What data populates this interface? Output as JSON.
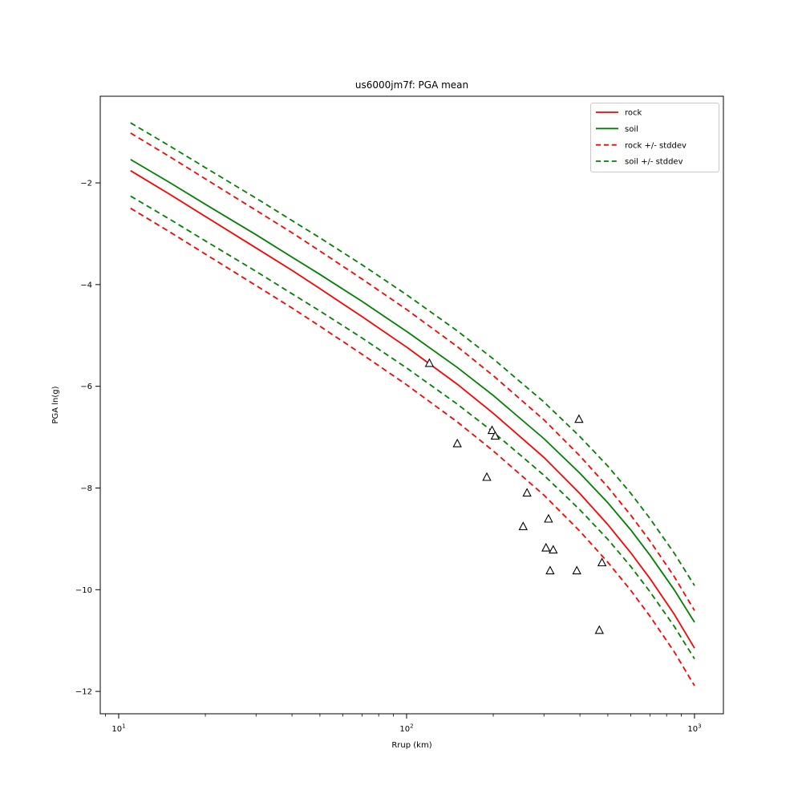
{
  "chart_data": {
    "type": "line",
    "title": "us6000jm7f: PGA mean",
    "xlabel": "Rrup (km)",
    "ylabel": "PGA ln(g)",
    "x_scale": "log",
    "y_scale": "linear",
    "xlim": [
      8.63,
      1260
    ],
    "ylim": [
      -12.44,
      -0.296
    ],
    "x_major_ticks": [
      10,
      100,
      1000
    ],
    "x_major_tick_exponents": [
      1,
      2,
      3
    ],
    "y_ticks": [
      -2,
      -4,
      -6,
      -8,
      -10,
      -12
    ],
    "grid": false,
    "legend_position": "upper right",
    "x": [
      11,
      15,
      20,
      30,
      40,
      50,
      70,
      100,
      150,
      200,
      300,
      400,
      500,
      600,
      700,
      850,
      1000
    ],
    "series": [
      {
        "name": "rock",
        "color": "#ff0000",
        "dash": "solid",
        "values": [
          -1.76,
          -2.22,
          -2.66,
          -3.28,
          -3.72,
          -4.08,
          -4.63,
          -5.23,
          -5.96,
          -6.53,
          -7.4,
          -8.11,
          -8.72,
          -9.27,
          -9.78,
          -10.48,
          -11.15
        ]
      },
      {
        "name": "soil",
        "color": "#008000",
        "dash": "solid",
        "values": [
          -1.54,
          -1.99,
          -2.42,
          -3.02,
          -3.46,
          -3.8,
          -4.33,
          -4.92,
          -5.63,
          -6.18,
          -7.03,
          -7.71,
          -8.29,
          -8.82,
          -9.32,
          -10.0,
          -10.64
        ]
      },
      {
        "name": "rock-plus-stddev",
        "color": "#ff0000",
        "dash": "dashed",
        "values": [
          -1.02,
          -1.48,
          -1.92,
          -2.54,
          -2.98,
          -3.34,
          -3.89,
          -4.49,
          -5.22,
          -5.79,
          -6.66,
          -7.37,
          -7.98,
          -8.53,
          -9.04,
          -9.74,
          -10.41
        ]
      },
      {
        "name": "rock-minus-stddev",
        "color": "#ff0000",
        "dash": "dashed",
        "values": [
          -2.5,
          -2.96,
          -3.4,
          -4.02,
          -4.46,
          -4.82,
          -5.37,
          -5.97,
          -6.7,
          -7.27,
          -8.14,
          -8.85,
          -9.46,
          -10.01,
          -10.52,
          -11.22,
          -11.89
        ]
      },
      {
        "name": "soil-plus-stddev",
        "color": "#008000",
        "dash": "dashed",
        "values": [
          -0.82,
          -1.27,
          -1.7,
          -2.3,
          -2.74,
          -3.08,
          -3.61,
          -4.2,
          -4.91,
          -5.46,
          -6.31,
          -6.99,
          -7.57,
          -8.1,
          -8.6,
          -9.28,
          -9.92
        ]
      },
      {
        "name": "soil-minus-stddev",
        "color": "#008000",
        "dash": "dashed",
        "values": [
          -2.26,
          -2.71,
          -3.14,
          -3.74,
          -4.18,
          -4.52,
          -5.05,
          -5.64,
          -6.35,
          -6.9,
          -7.75,
          -8.43,
          -9.01,
          -9.54,
          -10.04,
          -10.72,
          -11.36
        ]
      }
    ],
    "scatter": {
      "name": "station-observations",
      "marker": "triangle-up-open",
      "edge_color": "#000000",
      "points": [
        [
          120,
          -5.55
        ],
        [
          150,
          -7.13
        ],
        [
          190,
          -7.79
        ],
        [
          198,
          -6.87
        ],
        [
          203,
          -6.98
        ],
        [
          254,
          -8.76
        ],
        [
          262,
          -8.1
        ],
        [
          305,
          -9.18
        ],
        [
          311,
          -8.61
        ],
        [
          315,
          -9.63
        ],
        [
          323,
          -9.22
        ],
        [
          390,
          -9.63
        ],
        [
          397,
          -6.65
        ],
        [
          467,
          -10.8
        ],
        [
          477,
          -9.47
        ]
      ]
    },
    "legend": {
      "entries": [
        {
          "label": "rock",
          "color": "#ff0000",
          "dash": "solid"
        },
        {
          "label": "soil",
          "color": "#008000",
          "dash": "solid"
        },
        {
          "label": "rock +/- stddev",
          "color": "#ff0000",
          "dash": "dashed"
        },
        {
          "label": "soil +/- stddev",
          "color": "#008000",
          "dash": "dashed"
        }
      ]
    }
  }
}
